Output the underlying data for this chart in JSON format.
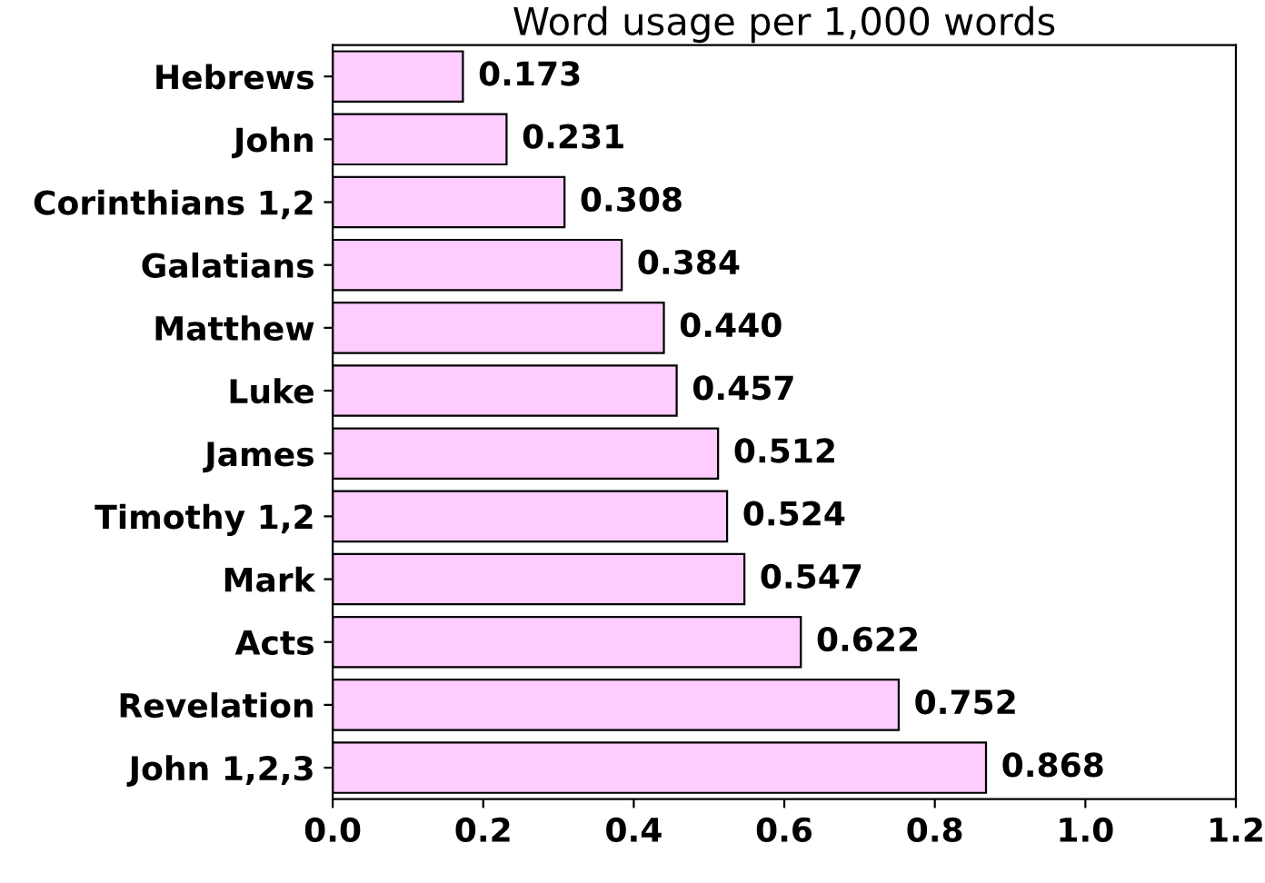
{
  "chart_data": {
    "type": "bar",
    "orientation": "horizontal",
    "title": "Word usage per 1,000 words",
    "categories": [
      "Hebrews",
      "John",
      "Corinthians 1,2",
      "Galatians",
      "Matthew",
      "Luke",
      "James",
      "Timothy 1,2",
      "Mark",
      "Acts",
      "Revelation",
      "John 1,2,3"
    ],
    "values": [
      0.173,
      0.231,
      0.308,
      0.384,
      0.44,
      0.457,
      0.512,
      0.524,
      0.547,
      0.622,
      0.752,
      0.868
    ],
    "value_labels": [
      "0.173",
      "0.231",
      "0.308",
      "0.384",
      "0.440",
      "0.457",
      "0.512",
      "0.524",
      "0.547",
      "0.622",
      "0.752",
      "0.868"
    ],
    "color": "#ffccff",
    "xlim": [
      0,
      1.2
    ],
    "xticks": [
      {
        "value": 0,
        "label": "0.0"
      },
      {
        "value": 0.2,
        "label": "0.2"
      },
      {
        "value": 0.4,
        "label": "0.4"
      },
      {
        "value": 0.6,
        "label": "0.6"
      },
      {
        "value": 0.8,
        "label": "0.8"
      },
      {
        "value": 1.0,
        "label": "1.0"
      },
      {
        "value": 1.2,
        "label": "1.2"
      }
    ],
    "grid": false,
    "legend": false
  }
}
